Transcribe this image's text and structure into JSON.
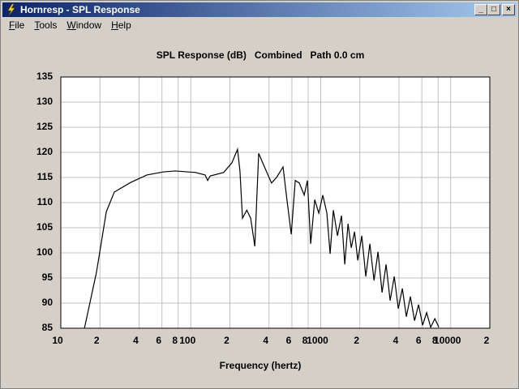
{
  "window": {
    "title": "Hornresp - SPL Response",
    "menu": [
      "File",
      "Tools",
      "Window",
      "Help"
    ]
  },
  "chart_data": {
    "type": "line",
    "title": "SPL Response (dB)   Combined   Path 0.0 cm",
    "x_label": "Frequency (hertz)",
    "x": [
      15.2,
      18.8,
      22.4,
      25.8,
      34.4,
      45.9,
      61.2,
      75.9,
      108.7,
      128.9,
      134.9,
      141,
      179,
      207,
      229,
      239,
      250,
      270,
      289,
      311,
      333,
      369,
      418,
      457,
      513,
      544,
      593,
      637,
      684,
      746,
      790,
      837,
      899,
      966,
      1038,
      1115,
      1181,
      1251,
      1345,
      1445,
      1531,
      1622,
      1718,
      1820,
      1928,
      2070,
      2223,
      2388,
      2570,
      2760,
      2965,
      3184,
      3420,
      3680,
      3953,
      4246,
      4560,
      4898,
      5272,
      5662,
      6081,
      6531,
      7015,
      7551,
      8110
    ],
    "values": [
      85,
      96.1,
      108.2,
      112.1,
      114,
      115.5,
      116.1,
      116.3,
      116,
      115.5,
      114.4,
      115.3,
      116,
      117.9,
      120.6,
      116.3,
      106.9,
      108.5,
      106.9,
      101.3,
      119.8,
      117.1,
      113.9,
      115,
      117.1,
      111.5,
      103.7,
      114.4,
      113.9,
      111.5,
      114.4,
      101.8,
      110.6,
      107.9,
      111.5,
      107.9,
      99.8,
      108.5,
      103.4,
      107.4,
      97.7,
      105.8,
      101,
      104.2,
      98.5,
      103.4,
      95.3,
      101.8,
      94.5,
      100.2,
      92.1,
      97.7,
      90.5,
      95.3,
      88.9,
      92.9,
      87.3,
      91.3,
      86.5,
      89.7,
      85.6,
      88.1,
      85.2,
      86.9,
      85.2
    ],
    "color": "#000000",
    "log_x": true,
    "grid": true,
    "xlim": [
      10,
      20000
    ],
    "xticks": [
      10,
      {
        "value": 20,
        "label": "2"
      },
      {
        "value": 40,
        "label": "4"
      },
      {
        "value": 60,
        "label": "6"
      },
      {
        "value": 80,
        "label": "8"
      },
      100,
      {
        "value": 200,
        "label": "2"
      },
      {
        "value": 400,
        "label": "4"
      },
      {
        "value": 600,
        "label": "6"
      },
      {
        "value": 800,
        "label": "8"
      },
      1000,
      {
        "value": 2000,
        "label": "2"
      },
      {
        "value": 4000,
        "label": "4"
      },
      {
        "value": 6000,
        "label": "6"
      },
      {
        "value": 8000,
        "label": "8"
      },
      10000,
      {
        "value": 20000,
        "label": "2"
      }
    ],
    "ylim": [
      85,
      135
    ],
    "yticks": [
      85,
      90,
      95,
      100,
      105,
      110,
      115,
      120,
      125,
      130,
      135
    ]
  }
}
